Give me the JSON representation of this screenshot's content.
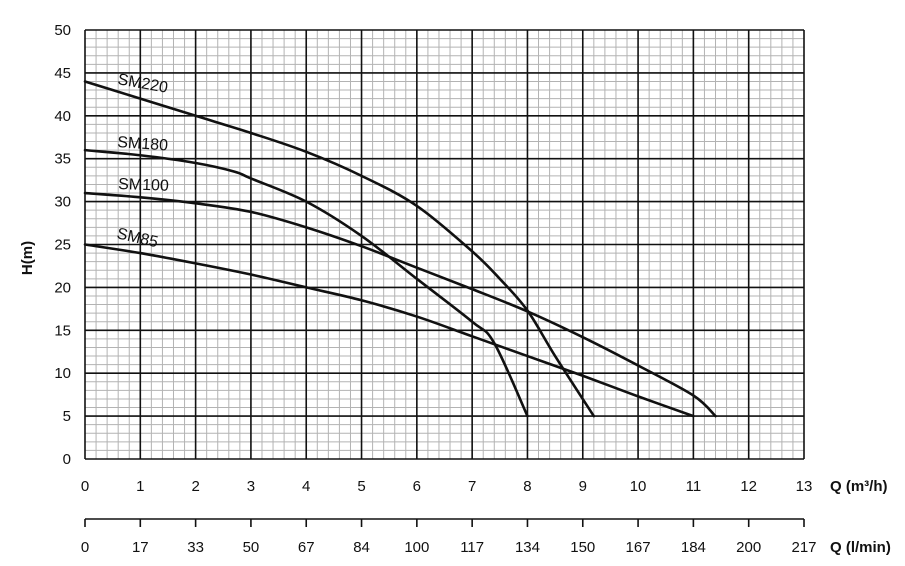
{
  "chart_data": {
    "type": "line",
    "ylabel": "H(m)",
    "xlabel": "Q (m³/h)",
    "secondary_xlabel": "Q (l/min)",
    "ylim": [
      0,
      50
    ],
    "xlim": [
      0,
      13
    ],
    "y_ticks": [
      "0",
      "5",
      "10",
      "15",
      "20",
      "25",
      "30",
      "35",
      "40",
      "45",
      "50"
    ],
    "x_ticks": [
      "0",
      "1",
      "2",
      "3",
      "4",
      "5",
      "6",
      "7",
      "8",
      "9",
      "10",
      "11",
      "12",
      "13"
    ],
    "secondary_x_ticks": [
      "0",
      "17",
      "33",
      "50",
      "67",
      "84",
      "100",
      "117",
      "134",
      "150",
      "167",
      "184",
      "200",
      "217"
    ],
    "grid": true,
    "line_color": "#111111",
    "series": [
      {
        "name": "SM220",
        "x": [
          0,
          1,
          2,
          3,
          4,
          5,
          6,
          7,
          7.5,
          8,
          8.5,
          9.2
        ],
        "y": [
          44,
          42,
          40,
          38,
          35.8,
          33,
          29.5,
          24.2,
          21,
          17.3,
          12,
          5
        ]
      },
      {
        "name": "SM180",
        "x": [
          0,
          1,
          2,
          2.7,
          3,
          4,
          5,
          6,
          7,
          7.4,
          8
        ],
        "y": [
          36,
          35.4,
          34.5,
          33.5,
          32.7,
          30,
          26,
          21,
          16,
          13.5,
          5
        ]
      },
      {
        "name": "SM100",
        "x": [
          0,
          1,
          2,
          3,
          4,
          5,
          6,
          7,
          8,
          9,
          10,
          11,
          11.4
        ],
        "y": [
          31,
          30.5,
          29.8,
          28.8,
          27,
          24.8,
          22.3,
          19.8,
          17.2,
          14.2,
          10.9,
          7.4,
          5
        ]
      },
      {
        "name": "SM85",
        "x": [
          0,
          1,
          2,
          3,
          4,
          5,
          6,
          7,
          8,
          9,
          10,
          11
        ],
        "y": [
          25,
          24,
          22.8,
          21.5,
          20,
          18.5,
          16.6,
          14.3,
          12,
          9.7,
          7.3,
          5
        ]
      }
    ]
  }
}
